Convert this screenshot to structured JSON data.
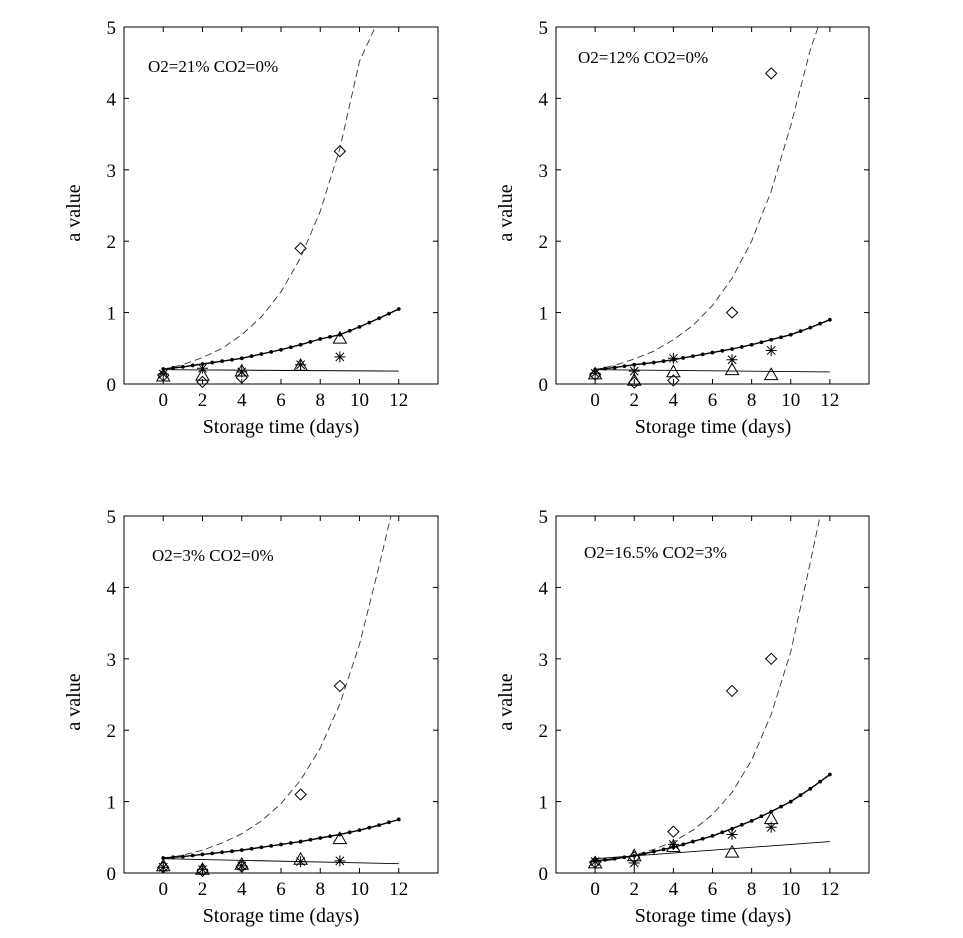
{
  "chart_data": [
    {
      "type": "scatter",
      "annotation": "O2=21% CO2=0%",
      "xlabel": "Storage time (days)",
      "ylabel": "a value",
      "xlim": [
        -2,
        14
      ],
      "ylim": [
        0,
        5
      ],
      "xticks": [
        0,
        2,
        4,
        6,
        8,
        10,
        12
      ],
      "yticks": [
        0,
        1,
        2,
        3,
        4,
        5
      ],
      "grid": false,
      "series": [
        {
          "marker": "diamond",
          "x": [
            0,
            2,
            4,
            7,
            9
          ],
          "y": [
            0.12,
            0.03,
            0.09,
            1.9,
            3.26
          ]
        },
        {
          "marker": "star",
          "x": [
            0,
            2,
            4,
            7,
            9
          ],
          "y": [
            0.14,
            0.22,
            0.17,
            0.27,
            0.38
          ]
        },
        {
          "marker": "triangle",
          "x": [
            0,
            2,
            4,
            7,
            9
          ],
          "y": [
            0.11,
            0.12,
            0.18,
            0.26,
            0.64
          ]
        },
        {
          "line": "dashed",
          "x": [
            0,
            1,
            2,
            3,
            4,
            5,
            6,
            7,
            8,
            9,
            10,
            10.8
          ],
          "y": [
            0.2,
            0.27,
            0.37,
            0.5,
            0.69,
            0.94,
            1.29,
            1.77,
            2.42,
            3.3,
            4.52,
            5.0
          ]
        },
        {
          "line": "dotted",
          "x": [
            0,
            1,
            2,
            3,
            4,
            5,
            6,
            7,
            8,
            9,
            10,
            11,
            12
          ],
          "y": [
            0.21,
            0.24,
            0.28,
            0.32,
            0.36,
            0.42,
            0.48,
            0.55,
            0.63,
            0.69,
            0.8,
            0.92,
            1.05
          ]
        },
        {
          "line": "solid",
          "x": [
            0,
            12
          ],
          "y": [
            0.2,
            0.18
          ]
        }
      ]
    },
    {
      "type": "scatter",
      "annotation": "O2=12% CO2=0%",
      "xlabel": "Storage time (days)",
      "ylabel": "a value",
      "xlim": [
        -2,
        14
      ],
      "ylim": [
        0,
        5
      ],
      "xticks": [
        0,
        2,
        4,
        6,
        8,
        10,
        12
      ],
      "yticks": [
        0,
        1,
        2,
        3,
        4,
        5
      ],
      "grid": false,
      "series": [
        {
          "marker": "diamond",
          "x": [
            0,
            2,
            4,
            7,
            9
          ],
          "y": [
            0.13,
            0.02,
            0.05,
            1.0,
            4.35
          ]
        },
        {
          "marker": "star",
          "x": [
            0,
            2,
            4,
            7,
            9
          ],
          "y": [
            0.15,
            0.18,
            0.36,
            0.34,
            0.47
          ]
        },
        {
          "marker": "triangle",
          "x": [
            0,
            2,
            4,
            7,
            9
          ],
          "y": [
            0.14,
            0.05,
            0.17,
            0.2,
            0.13
          ]
        },
        {
          "line": "dashed",
          "x": [
            0,
            1,
            2,
            3,
            4,
            5,
            6,
            7,
            8,
            9,
            10,
            11,
            11.4
          ],
          "y": [
            0.2,
            0.26,
            0.35,
            0.46,
            0.62,
            0.82,
            1.1,
            1.48,
            2.0,
            2.7,
            3.62,
            4.68,
            5.0
          ]
        },
        {
          "line": "dotted",
          "x": [
            0,
            1,
            2,
            3,
            4,
            5,
            6,
            7,
            8,
            9,
            10,
            11,
            12
          ],
          "y": [
            0.2,
            0.23,
            0.27,
            0.3,
            0.34,
            0.39,
            0.44,
            0.49,
            0.55,
            0.62,
            0.69,
            0.79,
            0.9
          ]
        },
        {
          "line": "solid",
          "x": [
            0,
            12
          ],
          "y": [
            0.2,
            0.17
          ]
        }
      ]
    },
    {
      "type": "scatter",
      "annotation": "O2=3% CO2=0%",
      "xlabel": "Storage time (days)",
      "ylabel": "a value",
      "xlim": [
        -2,
        14
      ],
      "ylim": [
        0,
        5
      ],
      "xticks": [
        0,
        2,
        4,
        6,
        8,
        10,
        12
      ],
      "yticks": [
        0,
        1,
        2,
        3,
        4,
        5
      ],
      "grid": false,
      "series": [
        {
          "marker": "diamond",
          "x": [
            0,
            2,
            4,
            7,
            9
          ],
          "y": [
            0.08,
            0.03,
            0.09,
            1.1,
            2.62
          ]
        },
        {
          "marker": "star",
          "x": [
            0,
            2,
            4,
            7,
            9
          ],
          "y": [
            0.08,
            0.05,
            0.1,
            0.16,
            0.17
          ]
        },
        {
          "marker": "triangle",
          "x": [
            0,
            2,
            4,
            7,
            9
          ],
          "y": [
            0.1,
            0.05,
            0.12,
            0.19,
            0.48
          ]
        },
        {
          "line": "dashed",
          "x": [
            0,
            1,
            2,
            3,
            4,
            5,
            6,
            7,
            8,
            9,
            10,
            11,
            11.6
          ],
          "y": [
            0.2,
            0.25,
            0.32,
            0.42,
            0.55,
            0.73,
            0.97,
            1.3,
            1.75,
            2.37,
            3.2,
            4.3,
            5.0
          ]
        },
        {
          "line": "dotted",
          "x": [
            0,
            1,
            2,
            3,
            4,
            5,
            6,
            7,
            8,
            9,
            10,
            11,
            12
          ],
          "y": [
            0.21,
            0.23,
            0.26,
            0.29,
            0.32,
            0.36,
            0.4,
            0.44,
            0.49,
            0.54,
            0.6,
            0.67,
            0.75
          ]
        },
        {
          "line": "solid",
          "x": [
            0,
            12
          ],
          "y": [
            0.2,
            0.13
          ]
        }
      ]
    },
    {
      "type": "scatter",
      "annotation": "O2=16.5% CO2=3%",
      "xlabel": "Storage time (days)",
      "ylabel": "a value",
      "xlim": [
        -2,
        14
      ],
      "ylim": [
        0,
        5
      ],
      "xticks": [
        0,
        2,
        4,
        6,
        8,
        10,
        12
      ],
      "yticks": [
        0,
        1,
        2,
        3,
        4,
        5
      ],
      "grid": false,
      "series": [
        {
          "marker": "diamond",
          "x": [
            0,
            2,
            4,
            7,
            9
          ],
          "y": [
            0.15,
            0.22,
            0.58,
            2.55,
            3.0
          ]
        },
        {
          "marker": "star",
          "x": [
            0,
            2,
            4,
            7,
            9
          ],
          "y": [
            0.16,
            0.14,
            0.4,
            0.54,
            0.64
          ]
        },
        {
          "marker": "triangle",
          "x": [
            0,
            2,
            4,
            7,
            9
          ],
          "y": [
            0.14,
            0.24,
            0.37,
            0.29,
            0.76
          ]
        },
        {
          "line": "dashed",
          "x": [
            0,
            1,
            2,
            3,
            4,
            5,
            6,
            7,
            8,
            9,
            10,
            11,
            11.5
          ],
          "y": [
            0.15,
            0.19,
            0.25,
            0.33,
            0.44,
            0.6,
            0.82,
            1.13,
            1.58,
            2.22,
            3.1,
            4.35,
            5.0
          ]
        },
        {
          "line": "dotted",
          "x": [
            0,
            1,
            2,
            3,
            4,
            5,
            6,
            7,
            8,
            9,
            10,
            11,
            12
          ],
          "y": [
            0.17,
            0.2,
            0.24,
            0.3,
            0.36,
            0.44,
            0.52,
            0.62,
            0.73,
            0.86,
            1.0,
            1.18,
            1.38
          ]
        },
        {
          "line": "solid",
          "x": [
            0,
            12
          ],
          "y": [
            0.2,
            0.44
          ]
        }
      ]
    }
  ]
}
